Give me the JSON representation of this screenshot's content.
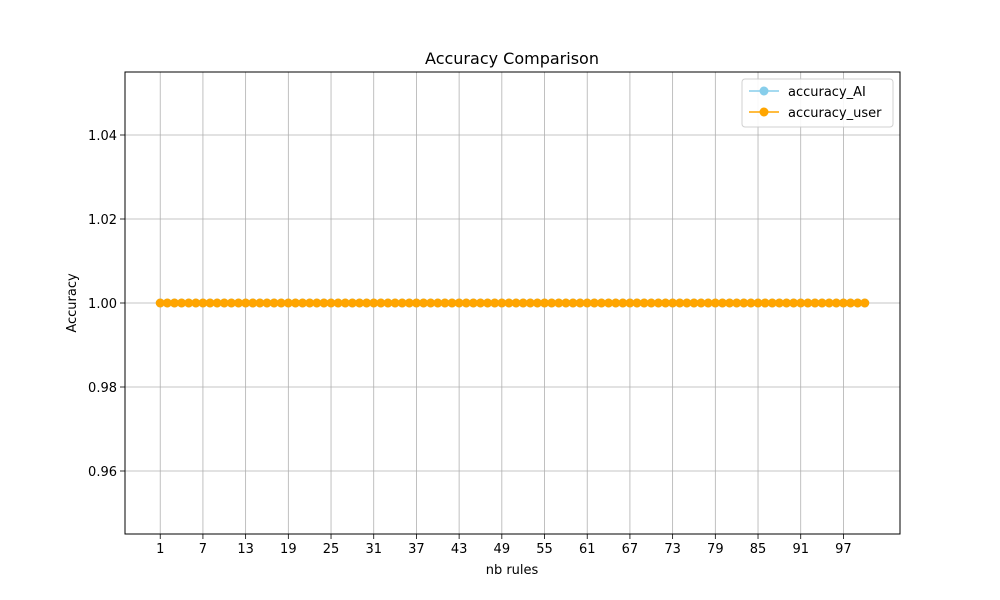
{
  "chart_data": {
    "type": "line",
    "title": "Accuracy Comparison",
    "xlabel": "nb rules",
    "ylabel": "Accuracy",
    "xlim": [
      -3.95,
      104.95
    ],
    "ylim": [
      0.945,
      1.055
    ],
    "x_ticks": [
      1,
      7,
      13,
      19,
      25,
      31,
      37,
      43,
      49,
      55,
      61,
      67,
      73,
      79,
      85,
      91,
      97
    ],
    "y_ticks": [
      0.96,
      0.98,
      1.0,
      1.02,
      1.04
    ],
    "y_tick_labels": [
      "0.96",
      "0.98",
      "1.00",
      "1.02",
      "1.04"
    ],
    "grid": true,
    "legend_position": "top-right",
    "x": [
      1,
      2,
      3,
      4,
      5,
      6,
      7,
      8,
      9,
      10,
      11,
      12,
      13,
      14,
      15,
      16,
      17,
      18,
      19,
      20,
      21,
      22,
      23,
      24,
      25,
      26,
      27,
      28,
      29,
      30,
      31,
      32,
      33,
      34,
      35,
      36,
      37,
      38,
      39,
      40,
      41,
      42,
      43,
      44,
      45,
      46,
      47,
      48,
      49,
      50,
      51,
      52,
      53,
      54,
      55,
      56,
      57,
      58,
      59,
      60,
      61,
      62,
      63,
      64,
      65,
      66,
      67,
      68,
      69,
      70,
      71,
      72,
      73,
      74,
      75,
      76,
      77,
      78,
      79,
      80,
      81,
      82,
      83,
      84,
      85,
      86,
      87,
      88,
      89,
      90,
      91,
      92,
      93,
      94,
      95,
      96,
      97,
      98,
      99,
      100
    ],
    "series": [
      {
        "name": "accuracy_AI",
        "color": "#87CEEB",
        "value": 1.0
      },
      {
        "name": "accuracy_user",
        "color": "#FFA500",
        "value": 1.0
      }
    ]
  }
}
